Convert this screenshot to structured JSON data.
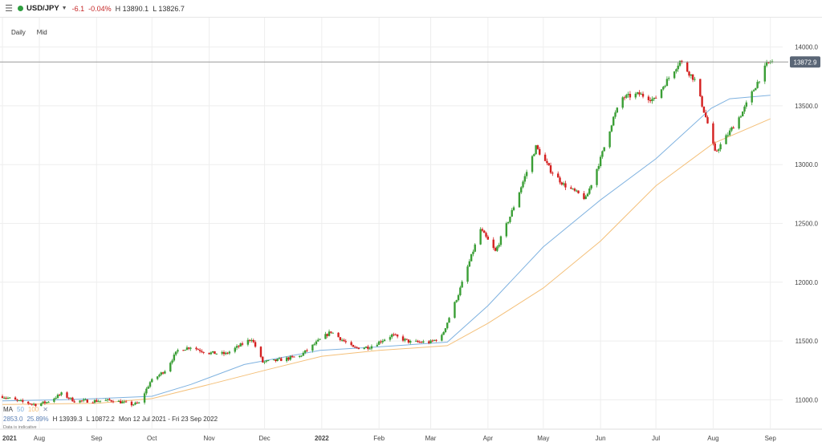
{
  "topbar": {
    "symbol": "USD/JPY",
    "change": "-6.1",
    "change_pct": "-0.04%",
    "high": "H 13890.1",
    "low": "L 13826.7",
    "status_color": "#2e9e3f"
  },
  "subbar": {
    "interval": "Daily",
    "price_type": "Mid"
  },
  "legend": {
    "ma_label": "MA",
    "ma_fast": "50",
    "ma_slow": "100",
    "close_glyph": "✕",
    "stat_value": "2853.0",
    "stat_pct": "25.89%",
    "period_high": "H 13939.3",
    "period_low": "L 10872.2",
    "date_range": "Mon 12 Jul 2021 - Fri 23 Sep 2022",
    "note": "Data is indicative"
  },
  "colors": {
    "up": "#3a9e35",
    "down": "#d42020",
    "ma_fast": "#7fb2e0",
    "ma_slow": "#f4c07a",
    "grid": "#eeeeee",
    "last_line": "#9a9a9a",
    "price_tag": "#5a6676"
  },
  "chart_data": {
    "type": "candlestick",
    "x_range": [
      "2021-07-12",
      "2022-09-02"
    ],
    "ylim": [
      10750,
      14250
    ],
    "grid": true,
    "y_ticks": [
      "14000.0",
      "13500.0",
      "13000.0",
      "12500.0",
      "12000.0",
      "11500.0",
      "11000.0"
    ],
    "y_tick_values": [
      14000,
      13500,
      13000,
      12500,
      12000,
      11500,
      11000
    ],
    "x_ticks": [
      {
        "label": "2021",
        "date": "2021-07-12",
        "bold": true
      },
      {
        "label": "Aug",
        "date": "2021-08-01",
        "bold": false
      },
      {
        "label": "Sep",
        "date": "2021-09-01",
        "bold": false
      },
      {
        "label": "Oct",
        "date": "2021-10-01",
        "bold": false
      },
      {
        "label": "Nov",
        "date": "2021-11-01",
        "bold": false
      },
      {
        "label": "Dec",
        "date": "2021-12-01",
        "bold": false
      },
      {
        "label": "2022",
        "date": "2022-01-01",
        "bold": true
      },
      {
        "label": "Feb",
        "date": "2022-02-01",
        "bold": false
      },
      {
        "label": "Mar",
        "date": "2022-03-01",
        "bold": false
      },
      {
        "label": "Apr",
        "date": "2022-04-01",
        "bold": false
      },
      {
        "label": "May",
        "date": "2022-05-01",
        "bold": false
      },
      {
        "label": "Jun",
        "date": "2022-06-01",
        "bold": false
      },
      {
        "label": "Jul",
        "date": "2022-07-01",
        "bold": false
      },
      {
        "label": "Aug",
        "date": "2022-08-01",
        "bold": false
      },
      {
        "label": "Sep",
        "date": "2022-09-01",
        "bold": false
      }
    ],
    "last_price": 13872.9,
    "last_price_label": "13872.9",
    "close_path": [
      [
        "2021-07-12",
        11030
      ],
      [
        "2021-07-20",
        10990
      ],
      [
        "2021-07-30",
        10960
      ],
      [
        "2021-08-05",
        10980
      ],
      [
        "2021-08-13",
        11050
      ],
      [
        "2021-08-20",
        10990
      ],
      [
        "2021-08-31",
        10990
      ],
      [
        "2021-09-10",
        10995
      ],
      [
        "2021-09-20",
        10960
      ],
      [
        "2021-09-24",
        10970
      ],
      [
        "2021-09-30",
        11150
      ],
      [
        "2021-10-08",
        11250
      ],
      [
        "2021-10-15",
        11420
      ],
      [
        "2021-10-22",
        11450
      ],
      [
        "2021-10-31",
        11400
      ],
      [
        "2021-11-10",
        11390
      ],
      [
        "2021-11-24",
        11520
      ],
      [
        "2021-11-30",
        11320
      ],
      [
        "2021-12-06",
        11330
      ],
      [
        "2021-12-20",
        11370
      ],
      [
        "2021-12-31",
        11510
      ],
      [
        "2022-01-06",
        11580
      ],
      [
        "2022-01-18",
        11440
      ],
      [
        "2022-01-27",
        11450
      ],
      [
        "2022-02-08",
        11550
      ],
      [
        "2022-02-18",
        11490
      ],
      [
        "2022-03-01",
        11490
      ],
      [
        "2022-03-07",
        11540
      ],
      [
        "2022-03-16",
        11900
      ],
      [
        "2022-03-28",
        12450
      ],
      [
        "2022-04-05",
        12260
      ],
      [
        "2022-04-13",
        12560
      ],
      [
        "2022-04-27",
        13150
      ],
      [
        "2022-05-05",
        12950
      ],
      [
        "2022-05-12",
        12830
      ],
      [
        "2022-05-24",
        12710
      ],
      [
        "2022-06-01",
        13050
      ],
      [
        "2022-06-08",
        13400
      ],
      [
        "2022-06-13",
        13570
      ],
      [
        "2022-06-22",
        13600
      ],
      [
        "2022-06-30",
        13550
      ],
      [
        "2022-07-14",
        13880
      ],
      [
        "2022-07-22",
        13720
      ],
      [
        "2022-07-29",
        13350
      ],
      [
        "2022-08-02",
        13100
      ],
      [
        "2022-08-10",
        13280
      ],
      [
        "2022-08-17",
        13450
      ],
      [
        "2022-08-24",
        13670
      ],
      [
        "2022-08-30",
        13850
      ],
      [
        "2022-09-01",
        13875
      ]
    ],
    "ma_fast": [
      [
        "2021-07-12",
        10990
      ],
      [
        "2021-08-13",
        11000
      ],
      [
        "2021-09-01",
        11010
      ],
      [
        "2021-10-01",
        11030
      ],
      [
        "2021-10-22",
        11130
      ],
      [
        "2021-11-20",
        11300
      ],
      [
        "2021-12-31",
        11420
      ],
      [
        "2022-02-01",
        11450
      ],
      [
        "2022-03-10",
        11490
      ],
      [
        "2022-04-01",
        11800
      ],
      [
        "2022-05-01",
        12300
      ],
      [
        "2022-06-01",
        12700
      ],
      [
        "2022-07-01",
        13050
      ],
      [
        "2022-07-31",
        13480
      ],
      [
        "2022-08-10",
        13560
      ],
      [
        "2022-09-01",
        13590
      ]
    ],
    "ma_slow": [
      [
        "2021-07-12",
        10960
      ],
      [
        "2021-09-01",
        10970
      ],
      [
        "2021-10-01",
        11010
      ],
      [
        "2021-11-01",
        11130
      ],
      [
        "2021-12-01",
        11250
      ],
      [
        "2022-01-01",
        11370
      ],
      [
        "2022-02-01",
        11420
      ],
      [
        "2022-03-10",
        11460
      ],
      [
        "2022-04-01",
        11650
      ],
      [
        "2022-05-01",
        11950
      ],
      [
        "2022-06-01",
        12350
      ],
      [
        "2022-07-01",
        12820
      ],
      [
        "2022-08-01",
        13180
      ],
      [
        "2022-09-01",
        13390
      ]
    ]
  }
}
